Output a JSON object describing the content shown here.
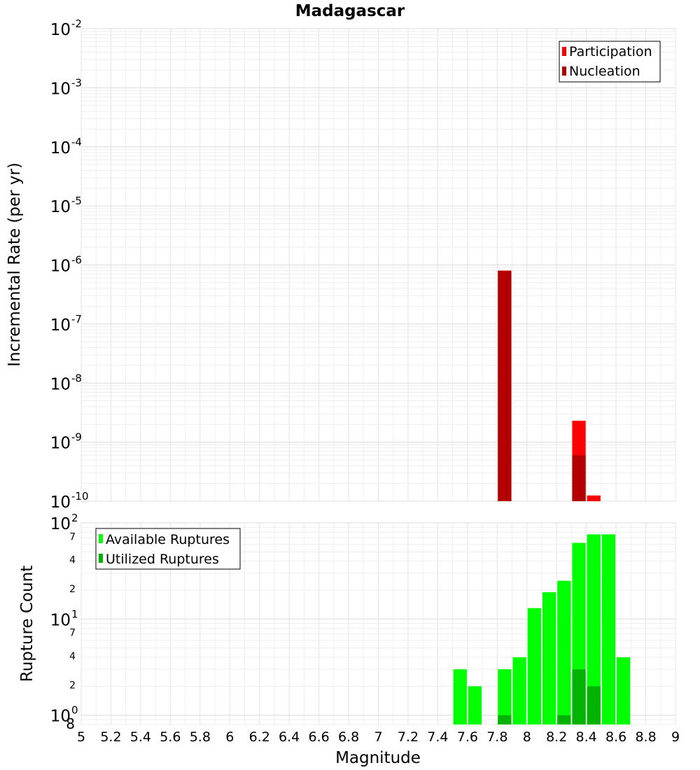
{
  "chart_data": [
    {
      "type": "bar",
      "title": "Madagascar",
      "ylabel": "Incremental Rate (per yr)",
      "xlabel": "",
      "xlim": [
        5,
        9
      ],
      "ylim": [
        1e-10,
        0.01
      ],
      "yscale": "log",
      "grid": true,
      "legend_position": "top-right",
      "y_ticks": [
        {
          "value": 0.01,
          "base": "10",
          "exp": "-2"
        },
        {
          "value": 0.001,
          "base": "10",
          "exp": "-3"
        },
        {
          "value": 0.0001,
          "base": "10",
          "exp": "-4"
        },
        {
          "value": 1e-05,
          "base": "10",
          "exp": "-5"
        },
        {
          "value": 1e-06,
          "base": "10",
          "exp": "-6"
        },
        {
          "value": 1e-07,
          "base": "10",
          "exp": "-7"
        },
        {
          "value": 1e-08,
          "base": "10",
          "exp": "-8"
        },
        {
          "value": 1e-09,
          "base": "10",
          "exp": "-9"
        },
        {
          "value": 1e-10,
          "base": "10",
          "exp": "-10"
        }
      ],
      "bin_width": 0.1,
      "series": [
        {
          "name": "Participation",
          "color": "#ff0000",
          "bins": [
            {
              "x": 7.85,
              "y": 8e-07
            },
            {
              "x": 8.35,
              "y": 2.3e-09
            },
            {
              "x": 8.45,
              "y": 1.25e-10
            }
          ]
        },
        {
          "name": "Nucleation",
          "color": "#b30000",
          "bins": [
            {
              "x": 7.85,
              "y": 8e-07
            },
            {
              "x": 8.35,
              "y": 6e-10
            }
          ]
        }
      ]
    },
    {
      "type": "bar",
      "title": "",
      "ylabel": "Rupture Count",
      "xlabel": "Magnitude",
      "xlim": [
        5,
        9
      ],
      "ylim": [
        0.8,
        100
      ],
      "yscale": "log",
      "grid": true,
      "legend_position": "top-left",
      "x_ticks": [
        "5",
        "5.2",
        "5.4",
        "5.6",
        "5.8",
        "6",
        "6.2",
        "6.4",
        "6.6",
        "6.8",
        "7",
        "7.2",
        "7.4",
        "7.6",
        "7.8",
        "8",
        "8.2",
        "8.4",
        "8.6",
        "8.8",
        "9"
      ],
      "y_major_ticks": [
        {
          "value": 100,
          "base": "10",
          "exp": "2"
        },
        {
          "value": 10,
          "base": "10",
          "exp": "1"
        },
        {
          "value": 1,
          "base": "10",
          "exp": "0"
        }
      ],
      "y_minor_ticks": [
        {
          "value": 70,
          "label": "7"
        },
        {
          "value": 40,
          "label": "4"
        },
        {
          "value": 20,
          "label": "2"
        },
        {
          "value": 7,
          "label": "7"
        },
        {
          "value": 4,
          "label": "4"
        },
        {
          "value": 2,
          "label": "2"
        },
        {
          "value": 0.8,
          "label": "8"
        }
      ],
      "bin_width": 0.1,
      "series": [
        {
          "name": "Available Ruptures",
          "color": "#00ff00",
          "bins": [
            {
              "x": 7.55,
              "y": 3
            },
            {
              "x": 7.65,
              "y": 2
            },
            {
              "x": 7.85,
              "y": 3
            },
            {
              "x": 7.95,
              "y": 4
            },
            {
              "x": 8.05,
              "y": 13
            },
            {
              "x": 8.15,
              "y": 19
            },
            {
              "x": 8.25,
              "y": 25
            },
            {
              "x": 8.35,
              "y": 62
            },
            {
              "x": 8.45,
              "y": 76
            },
            {
              "x": 8.55,
              "y": 76
            },
            {
              "x": 8.65,
              "y": 4
            }
          ]
        },
        {
          "name": "Utilized Ruptures",
          "color": "#00b300",
          "bins": [
            {
              "x": 7.85,
              "y": 1
            },
            {
              "x": 8.25,
              "y": 1
            },
            {
              "x": 8.35,
              "y": 3
            },
            {
              "x": 8.45,
              "y": 2
            }
          ]
        }
      ]
    }
  ]
}
